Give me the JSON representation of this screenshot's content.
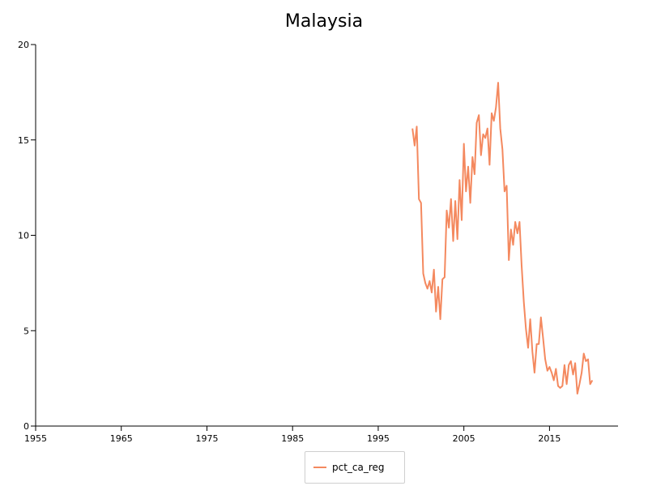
{
  "chart_data": {
    "type": "line",
    "title": "Malaysia",
    "xlabel": "",
    "ylabel": "",
    "xlim": [
      1955,
      2023
    ],
    "ylim": [
      0,
      20
    ],
    "x_ticks": [
      1955,
      1965,
      1975,
      1985,
      1995,
      2005,
      2015
    ],
    "y_ticks": [
      0,
      5,
      10,
      15,
      20
    ],
    "grid": false,
    "legend_position": "bottom-center",
    "series": [
      {
        "name": "pct_ca_reg",
        "color": "#f4895f",
        "x": [
          1999.0,
          1999.25,
          1999.5,
          1999.75,
          2000.0,
          2000.25,
          2000.5,
          2000.75,
          2001.0,
          2001.25,
          2001.5,
          2001.75,
          2002.0,
          2002.25,
          2002.5,
          2002.75,
          2003.0,
          2003.25,
          2003.5,
          2003.75,
          2004.0,
          2004.25,
          2004.5,
          2004.75,
          2005.0,
          2005.25,
          2005.5,
          2005.75,
          2006.0,
          2006.25,
          2006.5,
          2006.75,
          2007.0,
          2007.25,
          2007.5,
          2007.75,
          2008.0,
          2008.25,
          2008.5,
          2008.75,
          2009.0,
          2009.25,
          2009.5,
          2009.75,
          2010.0,
          2010.25,
          2010.5,
          2010.75,
          2011.0,
          2011.25,
          2011.5,
          2011.75,
          2012.0,
          2012.25,
          2012.5,
          2012.75,
          2013.0,
          2013.25,
          2013.5,
          2013.75,
          2014.0,
          2014.25,
          2014.5,
          2014.75,
          2015.0,
          2015.25,
          2015.5,
          2015.75,
          2016.0,
          2016.25,
          2016.5,
          2016.75,
          2017.0,
          2017.25,
          2017.5,
          2017.75,
          2018.0,
          2018.25,
          2018.5,
          2018.75,
          2019.0,
          2019.25,
          2019.5,
          2019.75,
          2020.0
        ],
        "values": [
          15.6,
          14.7,
          15.7,
          11.9,
          11.7,
          8.0,
          7.5,
          7.2,
          7.6,
          7.0,
          8.2,
          6.0,
          7.3,
          5.6,
          7.7,
          7.8,
          11.3,
          10.4,
          11.9,
          9.7,
          11.8,
          9.8,
          12.9,
          10.8,
          14.8,
          12.3,
          13.6,
          11.7,
          14.1,
          13.2,
          15.9,
          16.3,
          14.2,
          15.3,
          15.1,
          15.6,
          13.7,
          16.4,
          16.0,
          16.7,
          18.0,
          15.6,
          14.5,
          12.3,
          12.6,
          8.7,
          10.3,
          9.5,
          10.7,
          10.1,
          10.7,
          8.4,
          6.5,
          5.1,
          4.1,
          5.6,
          3.9,
          2.8,
          4.3,
          4.3,
          5.7,
          4.6,
          3.5,
          2.9,
          3.1,
          2.8,
          2.4,
          3.0,
          2.1,
          2.0,
          2.1,
          3.2,
          2.2,
          3.2,
          3.4,
          2.7,
          3.3,
          1.7,
          2.2,
          2.8,
          3.8,
          3.4,
          3.5,
          2.2,
          2.4
        ]
      }
    ]
  }
}
